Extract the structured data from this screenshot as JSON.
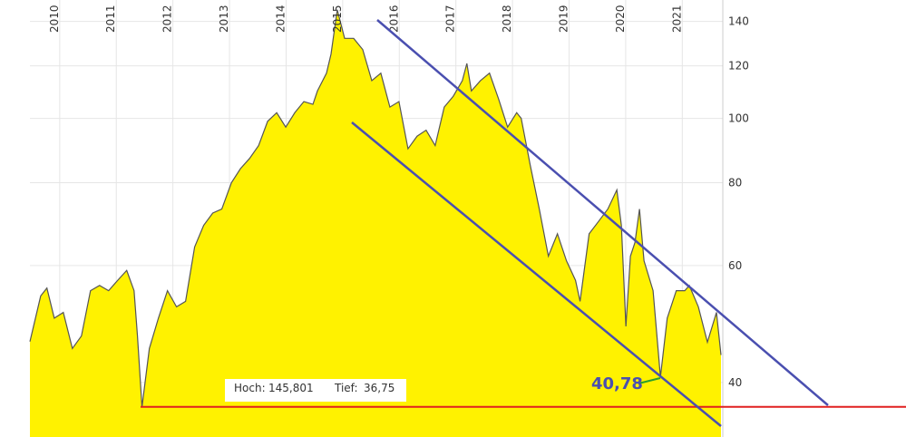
{
  "chart_data": {
    "type": "area",
    "log_y": true,
    "grid": true,
    "color": "#fff200",
    "line_color": "#555555",
    "x": [
      2009.57,
      2009.76,
      2009.87,
      2010.0,
      2010.16,
      2010.32,
      2010.48,
      2010.64,
      2010.8,
      2010.96,
      2011.12,
      2011.28,
      2011.41,
      2011.47,
      2011.55,
      2011.68,
      2011.84,
      2012.0,
      2012.16,
      2012.32,
      2012.48,
      2012.64,
      2012.8,
      2012.96,
      2013.13,
      2013.29,
      2013.45,
      2013.61,
      2013.77,
      2013.93,
      2014.09,
      2014.25,
      2014.41,
      2014.57,
      2014.65,
      2014.81,
      2014.89,
      2015.0,
      2015.13,
      2015.29,
      2015.45,
      2015.61,
      2015.77,
      2015.93,
      2016.09,
      2016.25,
      2016.41,
      2016.57,
      2016.73,
      2016.89,
      2017.05,
      2017.21,
      2017.29,
      2017.37,
      2017.53,
      2017.69,
      2017.85,
      2018.01,
      2018.17,
      2018.25,
      2018.41,
      2018.57,
      2018.73,
      2018.89,
      2019.05,
      2019.21,
      2019.29,
      2019.45,
      2019.62,
      2019.78,
      2019.94,
      2020.02,
      2020.1,
      2020.18,
      2020.26,
      2020.34,
      2020.42,
      2020.58,
      2020.71,
      2020.83,
      2020.99,
      2021.14,
      2021.22,
      2021.38,
      2021.54,
      2021.7,
      2021.78
    ],
    "y": [
      46.1,
      54,
      55.5,
      50,
      51,
      45,
      47,
      55,
      56,
      55,
      57,
      59,
      55,
      47,
      36.75,
      45,
      50,
      55,
      52,
      53,
      64,
      69,
      72,
      73,
      80,
      84,
      87,
      91,
      99,
      102,
      97,
      102,
      106,
      105,
      110,
      117,
      125,
      145.8,
      132,
      132,
      127,
      114,
      117,
      104,
      106,
      90,
      94,
      96,
      91,
      104,
      108,
      114,
      121,
      110,
      114,
      117,
      107,
      97,
      102,
      100,
      85,
      73,
      62,
      67,
      61,
      57,
      53,
      67,
      70,
      73,
      78,
      69,
      48.6,
      62,
      65,
      73,
      61,
      55,
      40.78,
      50,
      55,
      55,
      56,
      52,
      46,
      51,
      44
    ],
    "xlim": [
      2009.57,
      2021.78
    ],
    "xticks": [
      2010,
      2011,
      2012,
      2013,
      2014,
      2015,
      2016,
      2017,
      2018,
      2019,
      2020,
      2021
    ],
    "ylim": [
      33.1,
      150.8
    ],
    "yticks": [
      40,
      60,
      80,
      100,
      120,
      140
    ],
    "low_line": 36.75,
    "annotation": "40,78",
    "info_box": {
      "high_label": "Hoch:",
      "high": "145,801",
      "low_label": "Tief:",
      "low": "36,75"
    }
  }
}
